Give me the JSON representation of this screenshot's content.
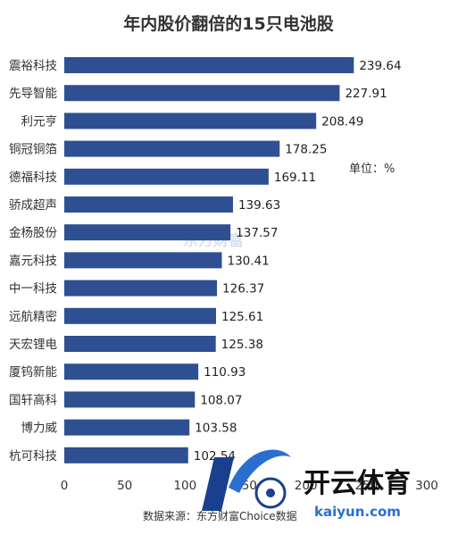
{
  "chart_data": {
    "type": "bar",
    "orientation": "horizontal",
    "title": "年内股价翻倍的15只电池股",
    "unit": "单位：%",
    "categories": [
      "震裕科技",
      "先导智能",
      "利元亨",
      "铜冠铜箔",
      "德福科技",
      "骄成超声",
      "金杨股份",
      "嘉元科技",
      "中一科技",
      "远航精密",
      "天宏锂电",
      "厦钨新能",
      "国轩高科",
      "博力威",
      "杭可科技"
    ],
    "values": [
      239.64,
      227.91,
      208.49,
      178.25,
      169.11,
      139.63,
      137.57,
      130.41,
      126.37,
      125.61,
      125.38,
      110.93,
      108.07,
      103.58,
      102.54
    ],
    "value_labels": [
      "239.64",
      "227.91",
      "208.49",
      "178.25",
      "169.11",
      "139.63",
      "137.57",
      "130.41",
      "126.37",
      "125.61",
      "125.38",
      "110.93",
      "108.07",
      "103.58",
      "102.54"
    ],
    "x_ticks": [
      "0",
      "50",
      "100",
      "150",
      "200",
      "250",
      "300"
    ],
    "xlim": [
      0,
      300
    ],
    "bar_color": "#2f4f93",
    "grid": false,
    "source": "数据来源：东方财富Choice数据"
  },
  "watermark": "东方财富",
  "logo": {
    "name": "开云体育",
    "domain": "kaiyun.com",
    "colors": [
      "#1a3f8f",
      "#2a6fcf"
    ]
  }
}
